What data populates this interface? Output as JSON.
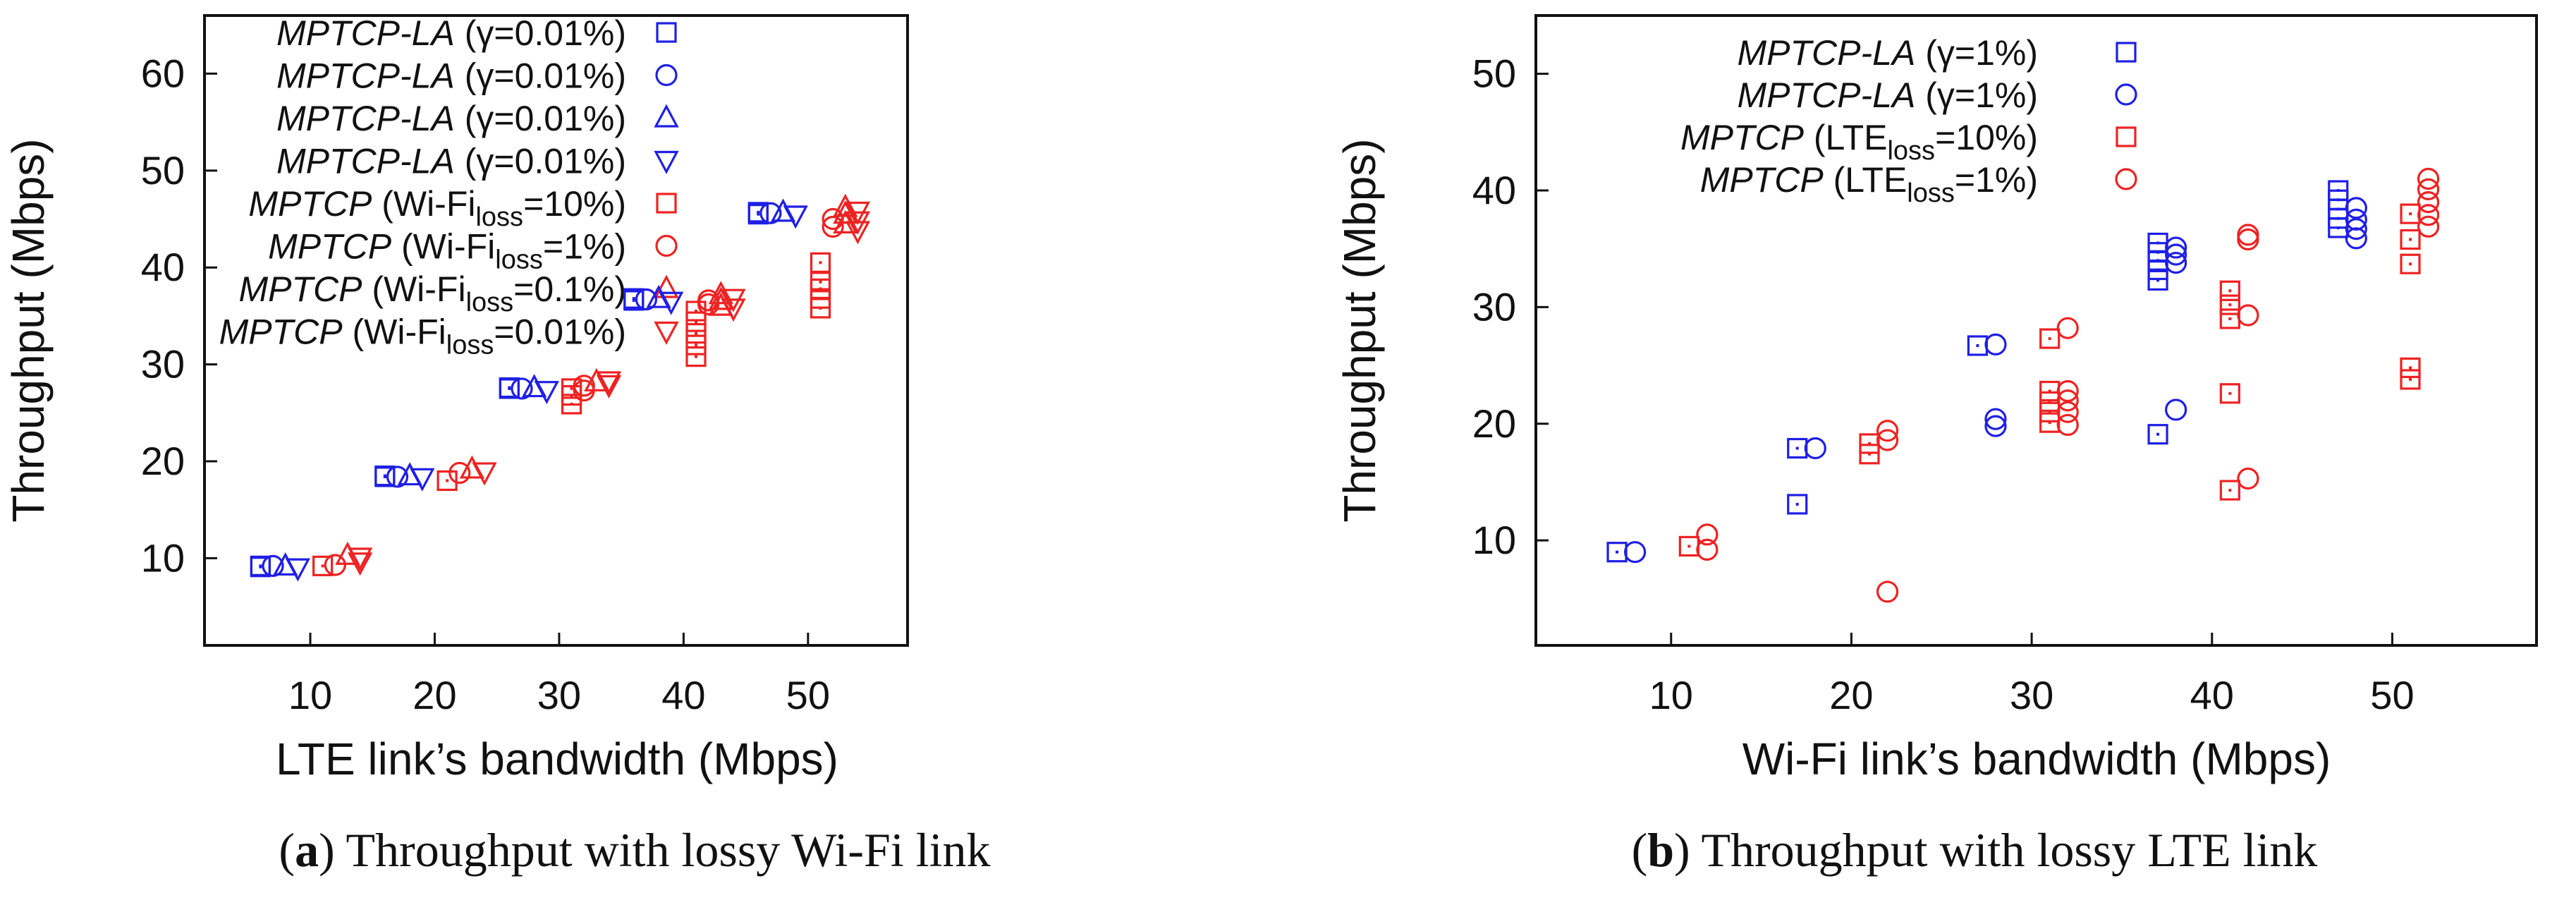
{
  "colors": {
    "blue": "#1f1fe6",
    "red": "#ee2222",
    "axis": "#111111"
  },
  "captions": [
    {
      "letter": "a",
      "text": " Throughput with lossy Wi-Fi link"
    },
    {
      "letter": "b",
      "text": " Throughput with lossy LTE link"
    }
  ],
  "chart_data": [
    {
      "type": "scatter",
      "title": "",
      "xlabel": "LTE link’s bandwidth (Mbps)",
      "ylabel": "Throughput (Mbps)",
      "xlim": [
        1.5,
        58
      ],
      "ylim": [
        1,
        66
      ],
      "xticks": [
        10,
        20,
        30,
        40,
        50
      ],
      "yticks": [
        10,
        20,
        30,
        40,
        50,
        60
      ],
      "grid": false,
      "legend_position": "top-left",
      "legend": [
        {
          "name": "MPTCP-LA",
          "param": " (γ=0.01%)",
          "sub": "",
          "tail": "",
          "marker": "square",
          "color": "blue"
        },
        {
          "name": "MPTCP-LA",
          "param": " (γ=0.01%)",
          "sub": "",
          "tail": "",
          "marker": "circle",
          "color": "blue"
        },
        {
          "name": "MPTCP-LA",
          "param": " (γ=0.01%)",
          "sub": "",
          "tail": "",
          "marker": "triangle-up",
          "color": "blue"
        },
        {
          "name": "MPTCP-LA",
          "param": " (γ=0.01%)",
          "sub": "",
          "tail": "",
          "marker": "triangle-down",
          "color": "blue"
        },
        {
          "name": "MPTCP",
          "param": " (Wi-Fi",
          "sub": "loss",
          "tail": "=10%)",
          "marker": "square",
          "color": "red"
        },
        {
          "name": "MPTCP",
          "param": " (Wi-Fi",
          "sub": "loss",
          "tail": "=1%)",
          "marker": "circle",
          "color": "red"
        },
        {
          "name": "MPTCP",
          "param": " (Wi-Fi",
          "sub": "loss",
          "tail": "=0.1%)",
          "marker": "triangle-up",
          "color": "red"
        },
        {
          "name": "MPTCP",
          "param": " (Wi-Fi",
          "sub": "loss",
          "tail": "=0.01%)",
          "marker": "triangle-down",
          "color": "red"
        }
      ],
      "series": [
        {
          "marker": "square",
          "color": "blue",
          "points": [
            [
              6,
              9.1
            ],
            [
              6,
              9.2
            ],
            [
              16,
              18.4
            ],
            [
              16,
              18.5
            ],
            [
              26,
              27.5
            ],
            [
              26,
              27.6
            ],
            [
              36,
              36.6
            ],
            [
              36,
              36.8
            ],
            [
              46,
              45.5
            ],
            [
              46,
              45.7
            ]
          ]
        },
        {
          "marker": "circle",
          "color": "blue",
          "points": [
            [
              7,
              9.2
            ],
            [
              17,
              18.4
            ],
            [
              27,
              27.5
            ],
            [
              37,
              36.7
            ],
            [
              47,
              45.6
            ]
          ]
        },
        {
          "marker": "triangle-up",
          "color": "blue",
          "points": [
            [
              8,
              9.2
            ],
            [
              18,
              18.5
            ],
            [
              28,
              27.6
            ],
            [
              38,
              36.8
            ],
            [
              48,
              45.7
            ]
          ]
        },
        {
          "marker": "triangle-down",
          "color": "blue",
          "points": [
            [
              9,
              9.0
            ],
            [
              19,
              18.3
            ],
            [
              29,
              27.3
            ],
            [
              39,
              36.5
            ],
            [
              49,
              45.4
            ]
          ]
        },
        {
          "marker": "square",
          "color": "red",
          "points": [
            [
              11,
              9.2
            ],
            [
              21,
              18.0
            ],
            [
              31,
              25.9
            ],
            [
              31,
              26.8
            ],
            [
              31,
              27.5
            ],
            [
              41,
              30.8
            ],
            [
              41,
              32.0
            ],
            [
              41,
              33.2
            ],
            [
              41,
              34.4
            ],
            [
              41,
              35.5
            ],
            [
              51,
              35.8
            ],
            [
              51,
              36.8
            ],
            [
              51,
              37.8
            ],
            [
              51,
              38.5
            ],
            [
              51,
              40.5
            ]
          ]
        },
        {
          "marker": "circle",
          "color": "red",
          "points": [
            [
              12,
              9.3
            ],
            [
              22,
              18.8
            ],
            [
              32,
              27.3
            ],
            [
              32,
              27.8
            ],
            [
              42,
              36.2
            ],
            [
              42,
              36.6
            ],
            [
              52,
              44.2
            ],
            [
              52,
              45.0
            ]
          ]
        },
        {
          "marker": "triangle-up",
          "color": "red",
          "points": [
            [
              13,
              10.3
            ],
            [
              23,
              19.2
            ],
            [
              33,
              28.2
            ],
            [
              43,
              36.0
            ],
            [
              43,
              36.6
            ],
            [
              43,
              37.2
            ],
            [
              53,
              44.5
            ],
            [
              53,
              45.5
            ],
            [
              53,
              46.2
            ]
          ]
        },
        {
          "marker": "triangle-down",
          "color": "red",
          "points": [
            [
              14,
              9.6
            ],
            [
              14,
              10.1
            ],
            [
              24,
              18.9
            ],
            [
              34,
              27.9
            ],
            [
              34,
              28.3
            ],
            [
              44,
              35.8
            ],
            [
              44,
              36.8
            ],
            [
              54,
              43.8
            ],
            [
              54,
              44.8
            ],
            [
              54,
              45.8
            ]
          ]
        }
      ]
    },
    {
      "type": "scatter",
      "title": "",
      "xlabel": "Wi-Fi link’s bandwidth (Mbps)",
      "ylabel": "Throughput (Mbps)",
      "xlim": [
        2.5,
        58
      ],
      "ylim": [
        1,
        55
      ],
      "xticks": [
        10,
        20,
        30,
        40,
        50
      ],
      "yticks": [
        10,
        20,
        30,
        40,
        50
      ],
      "grid": false,
      "legend_position": "top-left",
      "legend": [
        {
          "name": "MPTCP-LA",
          "param": " (γ=1%)",
          "sub": "",
          "tail": "",
          "marker": "square",
          "color": "blue"
        },
        {
          "name": "MPTCP-LA",
          "param": " (γ=1%)",
          "sub": "",
          "tail": "",
          "marker": "circle",
          "color": "blue"
        },
        {
          "name": "MPTCP",
          "param": " (LTE",
          "sub": "loss",
          "tail": "=10%)",
          "marker": "square",
          "color": "red"
        },
        {
          "name": "MPTCP",
          "param": " (LTE",
          "sub": "loss",
          "tail": "=1%)",
          "marker": "circle",
          "color": "red"
        }
      ],
      "series": [
        {
          "marker": "square",
          "color": "blue",
          "points": [
            [
              7,
              9.0
            ],
            [
              17,
              13.1
            ],
            [
              17,
              17.9
            ],
            [
              27,
              26.7
            ],
            [
              37,
              19.1
            ],
            [
              37,
              32.3
            ],
            [
              37,
              33.2
            ],
            [
              37,
              34.0
            ],
            [
              37,
              34.7
            ],
            [
              37,
              35.5
            ],
            [
              47,
              36.8
            ],
            [
              47,
              37.6
            ],
            [
              47,
              38.4
            ],
            [
              47,
              39.2
            ],
            [
              47,
              40.0
            ]
          ]
        },
        {
          "marker": "circle",
          "color": "blue",
          "points": [
            [
              8,
              9.0
            ],
            [
              18,
              17.9
            ],
            [
              28,
              19.8
            ],
            [
              28,
              20.4
            ],
            [
              28,
              26.8
            ],
            [
              38,
              21.2
            ],
            [
              38,
              33.8
            ],
            [
              38,
              34.5
            ],
            [
              38,
              35.1
            ],
            [
              48,
              35.9
            ],
            [
              48,
              36.7
            ],
            [
              48,
              37.5
            ],
            [
              48,
              38.5
            ]
          ]
        },
        {
          "marker": "square",
          "color": "red",
          "points": [
            [
              11,
              9.5
            ],
            [
              21,
              17.4
            ],
            [
              21,
              18.3
            ],
            [
              31,
              20.1
            ],
            [
              31,
              21.0
            ],
            [
              31,
              21.9
            ],
            [
              31,
              22.8
            ],
            [
              31,
              27.3
            ],
            [
              41,
              14.3
            ],
            [
              41,
              22.6
            ],
            [
              41,
              29.0
            ],
            [
              41,
              30.2
            ],
            [
              41,
              31.4
            ],
            [
              51,
              23.8
            ],
            [
              51,
              24.8
            ],
            [
              51,
              33.7
            ],
            [
              51,
              35.8
            ],
            [
              51,
              38.0
            ]
          ]
        },
        {
          "marker": "circle",
          "color": "red",
          "points": [
            [
              12,
              9.2
            ],
            [
              12,
              10.5
            ],
            [
              22,
              5.6
            ],
            [
              22,
              18.6
            ],
            [
              22,
              19.4
            ],
            [
              32,
              19.9
            ],
            [
              32,
              21.0
            ],
            [
              32,
              22.0
            ],
            [
              32,
              22.8
            ],
            [
              32,
              28.2
            ],
            [
              42,
              15.3
            ],
            [
              42,
              29.3
            ],
            [
              42,
              35.8
            ],
            [
              42,
              36.2
            ],
            [
              52,
              36.9
            ],
            [
              52,
              37.9
            ],
            [
              52,
              39.0
            ],
            [
              52,
              40.1
            ],
            [
              52,
              41.0
            ]
          ]
        }
      ]
    }
  ]
}
